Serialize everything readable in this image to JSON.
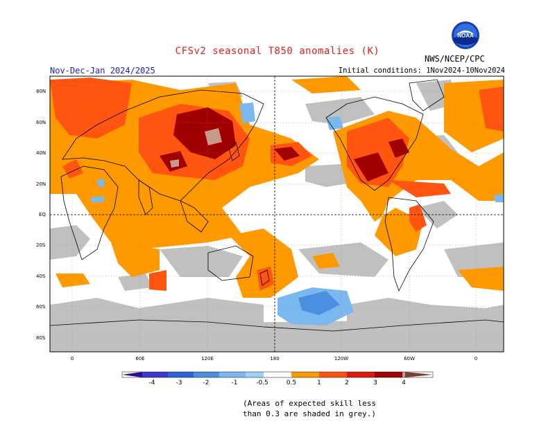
{
  "header": {
    "title": "CFSv2 seasonal T850 anomalies (K)",
    "period": "Nov-Dec-Jan 2024/2025",
    "initial_conditions": "Initial conditions: 1Nov2024-10Nov2024",
    "agency": "NWS/NCEP/CPC",
    "logo_text": "NOAA"
  },
  "map": {
    "projection": "equirectangular",
    "lat_labels": [
      "80N",
      "60N",
      "40N",
      "20N",
      "EQ",
      "20S",
      "40S",
      "60S",
      "80S"
    ],
    "lon_labels": [
      "0",
      "60E",
      "120E",
      "180",
      "120W",
      "60W",
      "0"
    ],
    "dashed_reference_lines": [
      "EQ",
      "180"
    ]
  },
  "colorbar": {
    "labels": [
      "-4",
      "-3",
      "-2",
      "-1",
      "-0.5",
      "0.5",
      "1",
      "2",
      "3",
      "4"
    ],
    "colors": [
      "#2b0f8f",
      "#3a3acd",
      "#2f63d9",
      "#4a90e0",
      "#7cb8f0",
      "#ffffff",
      "#ff9900",
      "#ff5511",
      "#dd1a0c",
      "#a00000",
      "#c89a8e",
      "#7a4030"
    ]
  },
  "legend_note": {
    "line1": "(Areas of expected skill less",
    "line2": "than 0.3 are shaded in grey.)"
  }
}
